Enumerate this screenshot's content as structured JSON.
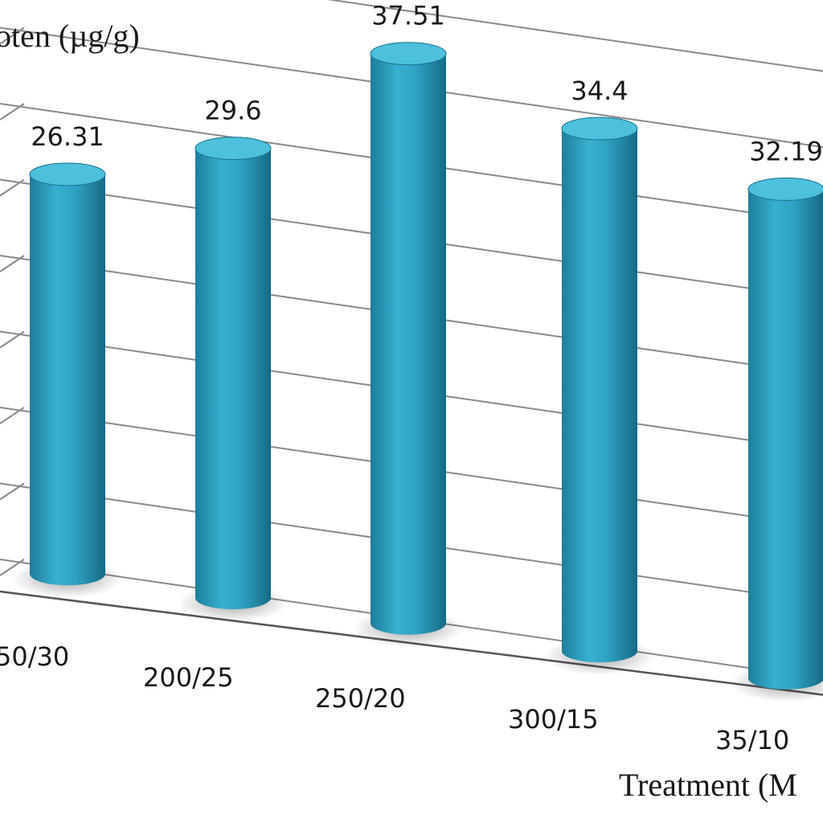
{
  "chart_data": {
    "type": "bar",
    "style": "3d-cylinder",
    "ylabel": "oten (µg/g)",
    "xlabel": "Treatment (M",
    "categories": [
      "50/30",
      "200/25",
      "250/20",
      "300/15",
      "35/10"
    ],
    "values": [
      26.31,
      29.6,
      37.51,
      34.4,
      32.19
    ],
    "value_labels": [
      "26.31",
      "29.6",
      "37.51",
      "34.4",
      "32.19"
    ],
    "ylim": [
      0,
      40
    ],
    "grid": true,
    "colors": {
      "bar": "#2f9fc0",
      "bar_dark": "#1b6f8a",
      "bar_top": "#4cc0dc",
      "grid": "#8a8a8a"
    }
  }
}
